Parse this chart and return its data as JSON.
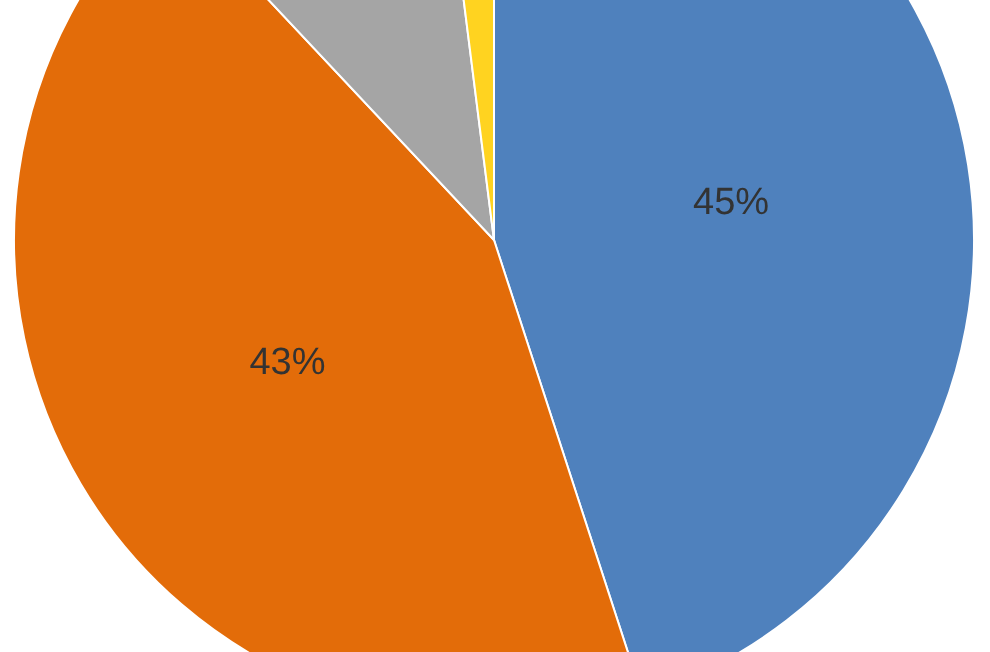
{
  "chart_data": {
    "type": "pie",
    "categories": [
      null,
      null,
      null,
      null
    ],
    "values": [
      45,
      43,
      10,
      2
    ],
    "colors": [
      "#4f81bd",
      "#e36c09",
      "#a5a5a5",
      "#ffd320"
    ],
    "value_labels": [
      "45%",
      "43%",
      null,
      null
    ]
  }
}
